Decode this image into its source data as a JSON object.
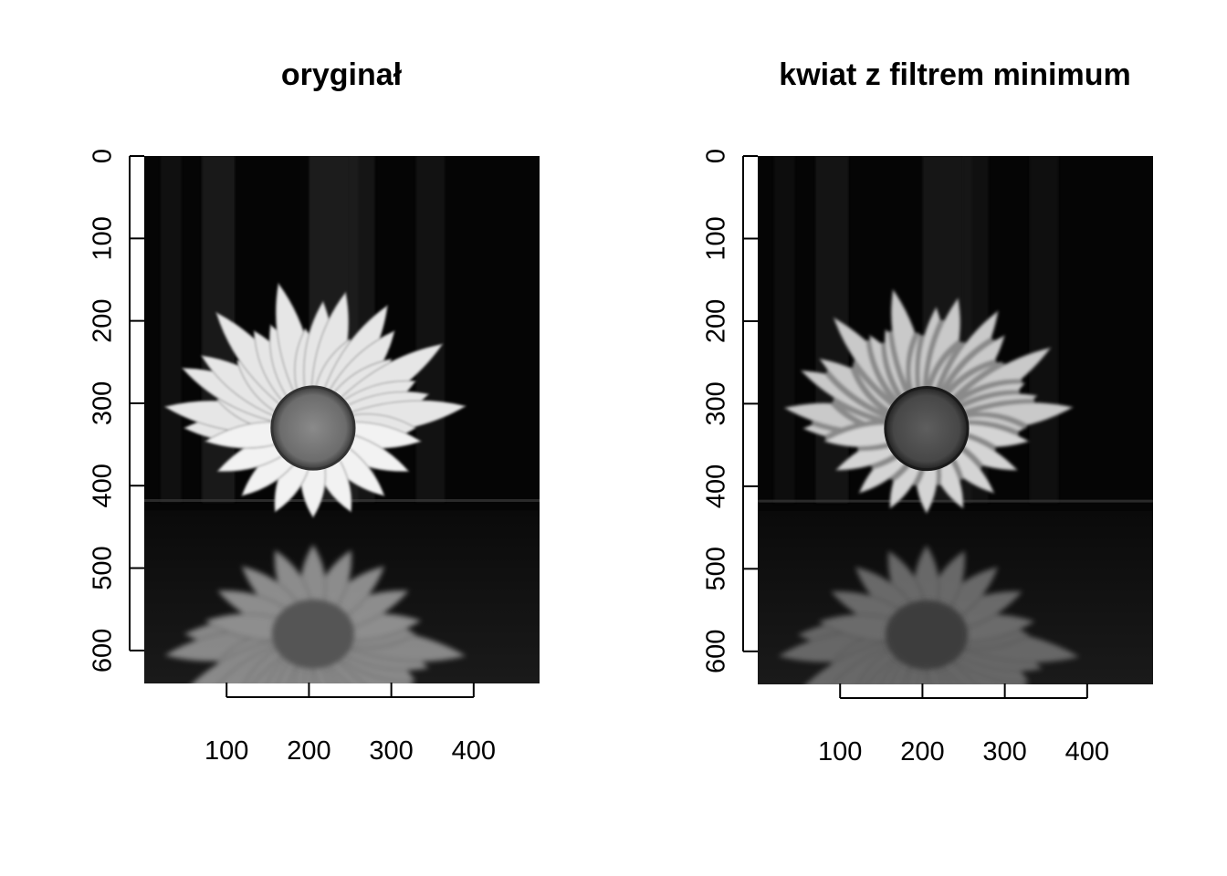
{
  "panels": [
    {
      "title": "oryginał",
      "filter": "original",
      "image_description": "Grayscale photo of a daisy flower resting on a dark water surface with its reflection below; dark tree trunks in the background.",
      "x_ticks": [
        "100",
        "200",
        "300",
        "400"
      ],
      "y_ticks": [
        "0",
        "100",
        "200",
        "300",
        "400",
        "500",
        "600"
      ]
    },
    {
      "title": "kwiat z filtrem minimum",
      "filter": "minimum",
      "image_description": "The same daisy photo after a minimum filter: petals look thinner and blurred, the flower centre appears darker and blocky.",
      "x_ticks": [
        "100",
        "200",
        "300",
        "400"
      ],
      "y_ticks": [
        "0",
        "100",
        "200",
        "300",
        "400",
        "500",
        "600"
      ]
    }
  ],
  "image_extent": {
    "x": [
      0,
      480
    ],
    "y": [
      0,
      640
    ]
  }
}
